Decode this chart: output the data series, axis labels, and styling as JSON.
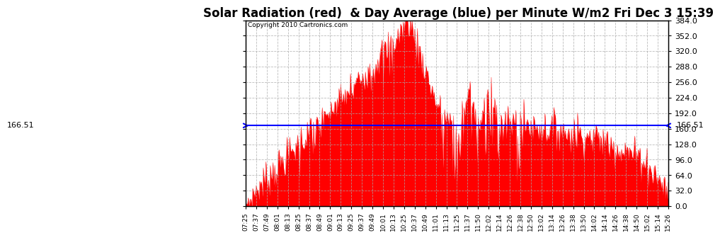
{
  "title": "Solar Radiation (red)  & Day Average (blue) per Minute W/m2 Fri Dec 3 15:39",
  "copyright_text": "Copyright 2010 Cartronics.com",
  "y_min": 0,
  "y_max": 384,
  "y_ticks": [
    0,
    32,
    64,
    96,
    128,
    160,
    192,
    224,
    256,
    288,
    320,
    352,
    384
  ],
  "day_average": 166.51,
  "fill_color": "#FF0000",
  "line_color": "#0000FF",
  "background_color": "#FFFFFF",
  "grid_color": "#AAAAAA",
  "title_fontsize": 12,
  "x_labels": [
    "07:25",
    "07:37",
    "07:49",
    "08:01",
    "08:13",
    "08:25",
    "08:37",
    "08:49",
    "09:01",
    "09:13",
    "09:25",
    "09:37",
    "09:49",
    "10:01",
    "10:13",
    "10:25",
    "10:37",
    "10:49",
    "11:01",
    "11:13",
    "11:25",
    "11:37",
    "11:50",
    "12:02",
    "12:14",
    "12:26",
    "12:38",
    "12:50",
    "13:02",
    "13:14",
    "13:26",
    "13:38",
    "13:50",
    "14:02",
    "14:14",
    "14:26",
    "14:38",
    "14:50",
    "15:02",
    "15:14",
    "15:26"
  ]
}
